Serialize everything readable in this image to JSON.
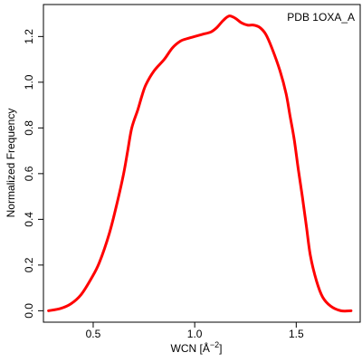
{
  "chart_data": {
    "type": "line",
    "annotation": "PDB 1OXA_A",
    "xlabel_main": "WCN [",
    "xlabel_unit": "Å",
    "xlabel_sup": "−2",
    "xlabel_end": "]",
    "ylabel": "Normalized Frequency",
    "xlim": [
      0.255,
      1.815
    ],
    "ylim": [
      -0.05,
      1.34
    ],
    "xticks": [
      0.5,
      1.0,
      1.5
    ],
    "xtick_labels": [
      "0.5",
      "1.0",
      "1.5"
    ],
    "yticks": [
      0.0,
      0.2,
      0.4,
      0.6,
      0.8,
      1.0,
      1.2
    ],
    "ytick_labels": [
      "0.0",
      "0.2",
      "0.4",
      "0.6",
      "0.8",
      "1.0",
      "1.2"
    ],
    "grid": false,
    "colors": {
      "line": "#ff0000",
      "axes": "#000000",
      "background": "#ffffff"
    },
    "series": [
      {
        "x": [
          0.28,
          0.34,
          0.39,
          0.44,
          0.49,
          0.53,
          0.58,
          0.62,
          0.65,
          0.67,
          0.69,
          0.72,
          0.74,
          0.76,
          0.8,
          0.85,
          0.89,
          0.93,
          0.96,
          1.0,
          1.04,
          1.08,
          1.11,
          1.14,
          1.17,
          1.2,
          1.23,
          1.26,
          1.29,
          1.32,
          1.35,
          1.38,
          1.42,
          1.45,
          1.47,
          1.49,
          1.51,
          1.53,
          1.55,
          1.57,
          1.6,
          1.63,
          1.67,
          1.72,
          1.77
        ],
        "y": [
          0.0,
          0.01,
          0.03,
          0.07,
          0.14,
          0.21,
          0.34,
          0.48,
          0.6,
          0.7,
          0.8,
          0.88,
          0.94,
          0.99,
          1.05,
          1.1,
          1.15,
          1.18,
          1.19,
          1.2,
          1.21,
          1.22,
          1.24,
          1.27,
          1.29,
          1.28,
          1.26,
          1.25,
          1.25,
          1.24,
          1.21,
          1.15,
          1.05,
          0.95,
          0.85,
          0.75,
          0.62,
          0.5,
          0.37,
          0.24,
          0.13,
          0.06,
          0.02,
          0.0,
          0.0
        ]
      }
    ]
  }
}
